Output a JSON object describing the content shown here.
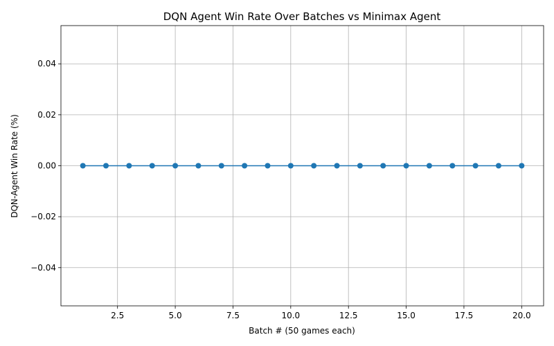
{
  "chart_data": {
    "type": "line",
    "title": "DQN Agent Win Rate Over Batches vs Minimax Agent",
    "xlabel": "Batch # (50 games each)",
    "ylabel": "DQN-Agent Win Rate (%)",
    "x": [
      1,
      2,
      3,
      4,
      5,
      6,
      7,
      8,
      9,
      10,
      11,
      12,
      13,
      14,
      15,
      16,
      17,
      18,
      19,
      20
    ],
    "series": [
      {
        "values": [
          0,
          0,
          0,
          0,
          0,
          0,
          0,
          0,
          0,
          0,
          0,
          0,
          0,
          0,
          0,
          0,
          0,
          0,
          0,
          0
        ]
      }
    ],
    "xlim": [
      0.05,
      20.95
    ],
    "ylim": [
      -0.055,
      0.055
    ],
    "xticks": [
      2.5,
      5.0,
      7.5,
      10.0,
      12.5,
      15.0,
      17.5,
      20.0
    ],
    "xtick_labels": [
      "2.5",
      "5.0",
      "7.5",
      "10.0",
      "12.5",
      "15.0",
      "17.5",
      "20.0"
    ],
    "yticks": [
      -0.04,
      -0.02,
      0.0,
      0.02,
      0.04
    ],
    "ytick_labels": [
      "−0.04",
      "−0.02",
      "0.00",
      "0.02",
      "0.04"
    ],
    "grid": true,
    "line_color": "#1f77b4",
    "marker": "circle"
  }
}
